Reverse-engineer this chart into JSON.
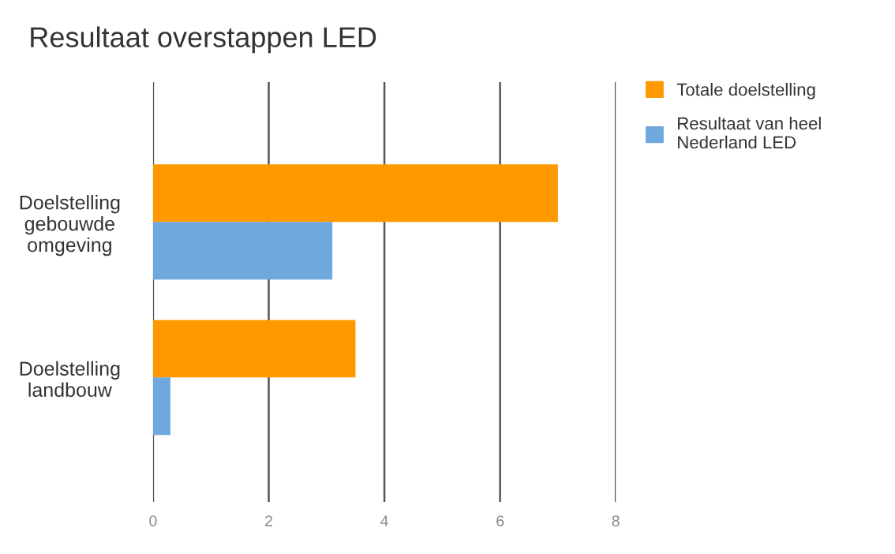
{
  "chart_data": {
    "type": "bar",
    "orientation": "horizontal",
    "title": "Resultaat overstappen LED",
    "categories": [
      "Doelstelling\ngebouwde\nomgeving",
      "Doelstelling\nlandbouw"
    ],
    "series": [
      {
        "name": "Totale doelstelling",
        "color": "#ff9900",
        "values": [
          7.0,
          3.5
        ]
      },
      {
        "name": "Resultaat van heel\nNederland LED",
        "color": "#6fa8dc",
        "values": [
          3.1,
          0.3
        ]
      }
    ],
    "xlim": [
      0,
      8
    ],
    "xticks": [
      0,
      2,
      4,
      6,
      8
    ],
    "grid": "x",
    "legend": "top right"
  }
}
